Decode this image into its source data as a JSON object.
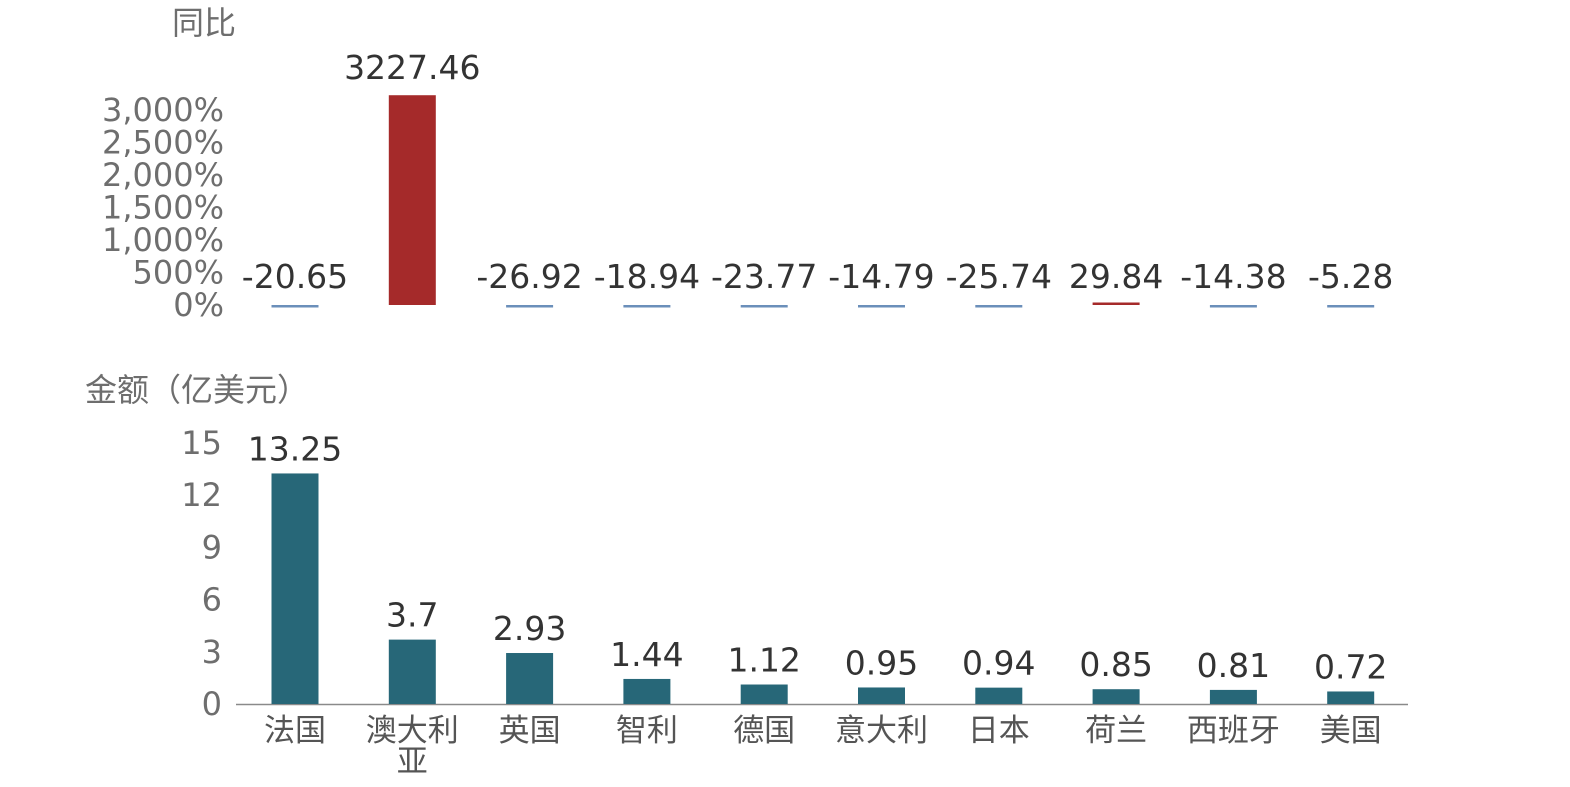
{
  "chart_data": [
    {
      "type": "bar",
      "ylabel": "同比",
      "yticks": [
        "0%",
        "500%",
        "1,000%",
        "1,500%",
        "2,000%",
        "2,500%",
        "3,000%"
      ],
      "ylim": [
        0,
        3000
      ],
      "categories": [
        "法国",
        "澳大利亚",
        "英国",
        "智利",
        "德国",
        "意大利",
        "日本",
        "荷兰",
        "西班牙",
        "美国"
      ],
      "values": [
        -20.65,
        3227.46,
        -26.92,
        -18.94,
        -23.77,
        -14.79,
        -25.74,
        29.84,
        -14.38,
        -5.28
      ],
      "data_labels": [
        "-20.65",
        "3227.46",
        "-26.92",
        "-18.94",
        "-23.77",
        "-14.79",
        "-25.74",
        "29.84",
        "-14.38",
        "-5.28"
      ],
      "colors": {
        "positive": "#a52a2a",
        "negative": "#6b8fba"
      }
    },
    {
      "type": "bar",
      "ylabel": "金额（亿美元）",
      "yticks": [
        "0",
        "3",
        "6",
        "9",
        "12",
        "15"
      ],
      "ylim": [
        0,
        15
      ],
      "categories": [
        "法国",
        "澳大利亚",
        "英国",
        "智利",
        "德国",
        "意大利",
        "日本",
        "荷兰",
        "西班牙",
        "美国"
      ],
      "category_labels": [
        [
          "法国"
        ],
        [
          "澳大利",
          "亚"
        ],
        [
          "英国"
        ],
        [
          "智利"
        ],
        [
          "德国"
        ],
        [
          "意大利"
        ],
        [
          "日本"
        ],
        [
          "荷兰"
        ],
        [
          "西班牙"
        ],
        [
          "美国"
        ]
      ],
      "values": [
        13.25,
        3.7,
        2.93,
        1.44,
        1.12,
        0.95,
        0.94,
        0.85,
        0.81,
        0.72
      ],
      "data_labels": [
        "13.25",
        "3.7",
        "2.93",
        "1.44",
        "1.12",
        "0.95",
        "0.94",
        "0.85",
        "0.81",
        "0.72"
      ],
      "colors": {
        "bar": "#276778"
      }
    }
  ]
}
